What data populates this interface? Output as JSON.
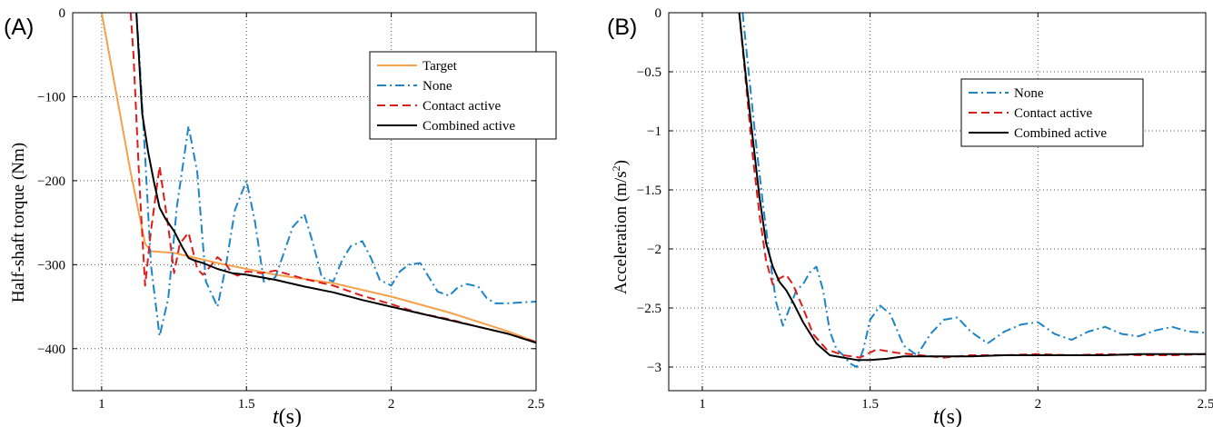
{
  "chart_data": [
    {
      "type": "line",
      "panel_label": "(A)",
      "xlabel_var": "t",
      "xlabel_unit": "(s)",
      "ylabel": "Half-shaft torque (Nm)",
      "xlim": [
        0.9,
        2.5
      ],
      "ylim": [
        -450,
        0
      ],
      "xticks": [
        1,
        1.5,
        2,
        2.5
      ],
      "yticks": [
        0,
        -100,
        -200,
        -300,
        -400
      ],
      "xtick_labels": [
        "1",
        "1.5",
        "2",
        "2.5"
      ],
      "ytick_labels": [
        "0",
        "−100",
        "−200",
        "−300",
        "−400"
      ],
      "grid": true,
      "legend_position": "top-right",
      "series": [
        {
          "name": "Target",
          "color": "#f5a04a",
          "style": "solid",
          "x": [
            1.0,
            1.05,
            1.1,
            1.15,
            1.17,
            1.25,
            1.3,
            1.4,
            1.5,
            1.6,
            1.8,
            2.0,
            2.2,
            2.4,
            2.5
          ],
          "y": [
            0,
            -95,
            -190,
            -275,
            -284,
            -286,
            -290,
            -298,
            -305,
            -312,
            -322,
            -338,
            -357,
            -379,
            -392
          ]
        },
        {
          "name": "None",
          "color": "#1f84c6",
          "style": "dashdot",
          "x": [
            1.12,
            1.13,
            1.15,
            1.17,
            1.2,
            1.23,
            1.26,
            1.3,
            1.33,
            1.36,
            1.4,
            1.43,
            1.46,
            1.5,
            1.53,
            1.56,
            1.6,
            1.63,
            1.66,
            1.7,
            1.73,
            1.76,
            1.8,
            1.83,
            1.86,
            1.9,
            1.93,
            1.96,
            2.0,
            2.03,
            2.06,
            2.1,
            2.13,
            2.16,
            2.2,
            2.23,
            2.26,
            2.3,
            2.33,
            2.36,
            2.4,
            2.45,
            2.5
          ],
          "y": [
            0,
            -50,
            -170,
            -300,
            -385,
            -340,
            -230,
            -135,
            -190,
            -320,
            -350,
            -300,
            -235,
            -200,
            -250,
            -320,
            -315,
            -285,
            -255,
            -240,
            -275,
            -315,
            -320,
            -295,
            -278,
            -272,
            -292,
            -318,
            -325,
            -308,
            -300,
            -298,
            -315,
            -332,
            -337,
            -327,
            -323,
            -326,
            -340,
            -346,
            -346,
            -345,
            -344
          ]
        },
        {
          "name": "Contact active",
          "color": "#dd1c1c",
          "style": "dashed",
          "x": [
            1.1,
            1.11,
            1.13,
            1.15,
            1.17,
            1.2,
            1.23,
            1.25,
            1.27,
            1.3,
            1.33,
            1.35,
            1.38,
            1.4,
            1.43,
            1.45,
            1.47,
            1.5,
            1.55,
            1.6,
            1.7,
            1.8,
            1.9,
            2.0,
            2.1,
            2.2,
            2.3,
            2.4,
            2.5
          ],
          "y": [
            0,
            -50,
            -200,
            -325,
            -260,
            -183,
            -255,
            -310,
            -275,
            -262,
            -305,
            -312,
            -300,
            -291,
            -300,
            -310,
            -313,
            -308,
            -310,
            -307,
            -317,
            -325,
            -337,
            -347,
            -358,
            -365,
            -374,
            -382,
            -392
          ]
        },
        {
          "name": "Combined active",
          "color": "#000000",
          "style": "solid",
          "x": [
            1.12,
            1.13,
            1.14,
            1.16,
            1.18,
            1.2,
            1.22,
            1.25,
            1.28,
            1.3,
            1.32,
            1.35,
            1.4,
            1.45,
            1.5,
            1.6,
            1.7,
            1.8,
            1.9,
            2.0,
            2.1,
            2.2,
            2.3,
            2.4,
            2.5
          ],
          "y": [
            0,
            -60,
            -120,
            -165,
            -200,
            -232,
            -245,
            -260,
            -280,
            -292,
            -295,
            -298,
            -305,
            -310,
            -312,
            -318,
            -326,
            -333,
            -342,
            -350,
            -358,
            -366,
            -374,
            -382,
            -393
          ]
        }
      ]
    },
    {
      "type": "line",
      "panel_label": "(B)",
      "xlabel_var": "t",
      "xlabel_unit": "(s)",
      "ylabel_text": "Acceleration (m/s",
      "ylabel_sup": "2",
      "ylabel_close": ")",
      "xlim": [
        0.9,
        2.5
      ],
      "ylim": [
        -3.2,
        0
      ],
      "xticks": [
        1,
        1.5,
        2,
        2.5
      ],
      "yticks": [
        0,
        -0.5,
        -1,
        -1.5,
        -2,
        -2.5,
        -3
      ],
      "xtick_labels": [
        "1",
        "1.5",
        "2",
        "2.5"
      ],
      "ytick_labels": [
        "0",
        "−0.5",
        "−1",
        "−1.5",
        "−2",
        "−2.5",
        "−3"
      ],
      "grid": true,
      "legend_position": "top-right",
      "series": [
        {
          "name": "None",
          "color": "#1f84c6",
          "style": "dashdot",
          "x": [
            1.12,
            1.14,
            1.16,
            1.18,
            1.2,
            1.22,
            1.24,
            1.26,
            1.28,
            1.3,
            1.32,
            1.34,
            1.36,
            1.38,
            1.4,
            1.42,
            1.44,
            1.46,
            1.48,
            1.5,
            1.53,
            1.56,
            1.6,
            1.64,
            1.68,
            1.72,
            1.76,
            1.8,
            1.85,
            1.9,
            1.95,
            2.0,
            2.05,
            2.1,
            2.15,
            2.2,
            2.25,
            2.3,
            2.35,
            2.4,
            2.45,
            2.5
          ],
          "y": [
            0,
            -0.55,
            -1.1,
            -1.6,
            -2.05,
            -2.45,
            -2.65,
            -2.5,
            -2.35,
            -2.3,
            -2.2,
            -2.15,
            -2.35,
            -2.7,
            -2.85,
            -2.9,
            -2.97,
            -3.0,
            -2.85,
            -2.6,
            -2.48,
            -2.55,
            -2.82,
            -2.9,
            -2.72,
            -2.6,
            -2.58,
            -2.7,
            -2.8,
            -2.7,
            -2.64,
            -2.62,
            -2.72,
            -2.77,
            -2.7,
            -2.66,
            -2.72,
            -2.74,
            -2.69,
            -2.66,
            -2.7,
            -2.71
          ]
        },
        {
          "name": "Contact active",
          "color": "#dd1c1c",
          "style": "dashed",
          "x": [
            1.11,
            1.13,
            1.15,
            1.17,
            1.19,
            1.21,
            1.23,
            1.25,
            1.27,
            1.3,
            1.33,
            1.37,
            1.42,
            1.47,
            1.52,
            1.58,
            1.65,
            1.72,
            1.8,
            1.9,
            2.0,
            2.1,
            2.2,
            2.3,
            2.4,
            2.5
          ],
          "y": [
            0,
            -0.6,
            -1.2,
            -1.7,
            -2.1,
            -2.3,
            -2.25,
            -2.22,
            -2.3,
            -2.5,
            -2.72,
            -2.85,
            -2.9,
            -2.92,
            -2.85,
            -2.88,
            -2.9,
            -2.92,
            -2.9,
            -2.9,
            -2.89,
            -2.9,
            -2.89,
            -2.9,
            -2.9,
            -2.89
          ]
        },
        {
          "name": "Combined active",
          "color": "#000000",
          "style": "solid",
          "x": [
            1.11,
            1.13,
            1.15,
            1.17,
            1.19,
            1.21,
            1.23,
            1.25,
            1.27,
            1.3,
            1.34,
            1.38,
            1.42,
            1.46,
            1.5,
            1.55,
            1.6,
            1.7,
            1.8,
            1.9,
            2.0,
            2.1,
            2.2,
            2.3,
            2.4,
            2.5
          ],
          "y": [
            0,
            -0.55,
            -1.05,
            -1.55,
            -1.95,
            -2.15,
            -2.28,
            -2.35,
            -2.45,
            -2.62,
            -2.8,
            -2.9,
            -2.92,
            -2.94,
            -2.94,
            -2.93,
            -2.91,
            -2.91,
            -2.91,
            -2.9,
            -2.9,
            -2.9,
            -2.9,
            -2.89,
            -2.89,
            -2.89
          ]
        }
      ]
    }
  ]
}
